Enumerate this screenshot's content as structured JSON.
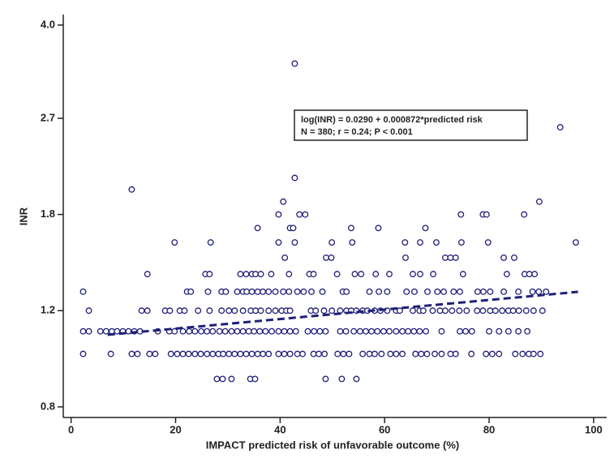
{
  "chart_data": {
    "type": "scatter",
    "x_label": "IMPACT predicted risk of unfavorable outcome (%)",
    "y_label": "INR",
    "annotation": [
      "log(INR) = 0.0290  +  0.000872*predicted risk",
      "N = 380; r = 0.24; P < 0.001"
    ],
    "color": "#1f1f7a",
    "log_y": true,
    "xlim": [
      -1.5,
      102.5
    ],
    "ylim": [
      0.765,
      4.18
    ],
    "xticks": [
      0,
      20,
      40,
      60,
      80,
      100
    ],
    "yticks": [
      {
        "value": 0.8,
        "label": "0.8"
      },
      {
        "value": 1.2,
        "label": "1.2"
      },
      {
        "value": 1.8,
        "label": "1.8"
      },
      {
        "value": 2.7,
        "label": "2.7"
      },
      {
        "value": 4.0,
        "label": "4.0"
      }
    ],
    "trend_line": {
      "x": [
        7,
        97
      ],
      "y": [
        1.084,
        1.299
      ]
    },
    "x": [
      2.3,
      7.6,
      11.6,
      12.7,
      15.0,
      16.1,
      19.1,
      20.3,
      21.4,
      22.5,
      23.7,
      24.8,
      26.0,
      27.1,
      28.2,
      29.1,
      30.2,
      31.3,
      32.4,
      33.5,
      34.6,
      35.7,
      36.7,
      37.8,
      39.7,
      40.8,
      41.9,
      43.3,
      44.3,
      46.4,
      47.4,
      48.5,
      51.0,
      52.1,
      53.2,
      55.8,
      57.1,
      58.1,
      59.4,
      61.1,
      62.2,
      63.4,
      65.9,
      67.0,
      68.1,
      69.6,
      70.9,
      72.6,
      73.6,
      76.6,
      79.4,
      80.6,
      81.9,
      85.0,
      86.4,
      87.6,
      88.5,
      89.8,
      2.3,
      3.4,
      5.6,
      6.7,
      7.8,
      8.8,
      9.9,
      11.0,
      12.1,
      13.2,
      16.6,
      18.8,
      19.8,
      21.4,
      22.6,
      23.7,
      24.9,
      26.0,
      27.1,
      28.4,
      29.5,
      30.7,
      31.8,
      32.9,
      34.0,
      35.0,
      36.1,
      37.2,
      38.4,
      39.7,
      40.8,
      41.9,
      43.0,
      45.3,
      46.5,
      47.6,
      48.7,
      51.5,
      52.6,
      54.1,
      55.3,
      56.4,
      57.5,
      58.6,
      59.8,
      60.9,
      62.2,
      63.4,
      64.5,
      65.6,
      66.7,
      67.9,
      70.9,
      74.4,
      75.5,
      76.7,
      80.0,
      81.9,
      83.7,
      85.6,
      87.3,
      3.4,
      13.5,
      14.6,
      18.0,
      18.9,
      20.8,
      21.7,
      24.3,
      26.5,
      28.8,
      30.2,
      31.3,
      32.9,
      34.4,
      35.3,
      36.3,
      37.8,
      39.1,
      40.3,
      41.2,
      41.9,
      45.9,
      46.8,
      48.4,
      49.9,
      51.5,
      52.7,
      53.6,
      54.6,
      55.8,
      56.7,
      58.1,
      59.2,
      60.5,
      62.2,
      62.9,
      65.4,
      66.7,
      67.4,
      69.2,
      70.6,
      71.6,
      72.9,
      74.3,
      75.7,
      77.7,
      78.8,
      80.2,
      81.2,
      82.5,
      83.7,
      84.6,
      85.7,
      87.1,
      88.5,
      90.2,
      2.3,
      22.2,
      22.9,
      26.2,
      28.8,
      29.6,
      31.8,
      32.9,
      33.6,
      34.6,
      35.7,
      36.7,
      37.8,
      39.1,
      40.6,
      41.7,
      43.3,
      44.5,
      46.0,
      48.1,
      52.0,
      52.7,
      57.1,
      58.9,
      60.5,
      64.2,
      65.7,
      68.2,
      70.1,
      71.3,
      73.2,
      74.4,
      77.8,
      78.9,
      80.2,
      82.8,
      85.6,
      88.3,
      89.5,
      90.9,
      14.6,
      25.7,
      26.5,
      32.4,
      33.5,
      34.6,
      35.3,
      36.3,
      38.3,
      41.7,
      45.6,
      46.4,
      50.9,
      54.3,
      55.5,
      58.3,
      60.9,
      65.4,
      66.8,
      69.3,
      75.0,
      83.4,
      86.8,
      87.7,
      88.7,
      40.9,
      48.8,
      49.8,
      64.0,
      71.6,
      72.6,
      73.6,
      82.8,
      84.8,
      19.8,
      26.7,
      39.7,
      42.8,
      49.9,
      53.8,
      63.9,
      66.8,
      69.9,
      74.7,
      79.8,
      96.6,
      35.7,
      41.9,
      42.5,
      53.6,
      58.8,
      67.8,
      39.7,
      43.7,
      44.8,
      74.6,
      78.8,
      79.5,
      86.7,
      40.6,
      89.6,
      11.6,
      42.8,
      93.6,
      42.8,
      27.9,
      29.0,
      30.7,
      34.3,
      35.2,
      48.7,
      51.8,
      54.6
    ],
    "values": [
      1.0,
      1.0,
      1.0,
      1.0,
      1.0,
      1.0,
      1.0,
      1.0,
      1.0,
      1.0,
      1.0,
      1.0,
      1.0,
      1.0,
      1.0,
      1.0,
      1.0,
      1.0,
      1.0,
      1.0,
      1.0,
      1.0,
      1.0,
      1.0,
      1.0,
      1.0,
      1.0,
      1.0,
      1.0,
      1.0,
      1.0,
      1.0,
      1.0,
      1.0,
      1.0,
      1.0,
      1.0,
      1.0,
      1.0,
      1.0,
      1.0,
      1.0,
      1.0,
      1.0,
      1.0,
      1.0,
      1.0,
      1.0,
      1.0,
      1.0,
      1.0,
      1.0,
      1.0,
      1.0,
      1.0,
      1.0,
      1.0,
      1.0,
      1.1,
      1.1,
      1.1,
      1.1,
      1.1,
      1.1,
      1.1,
      1.1,
      1.1,
      1.1,
      1.1,
      1.1,
      1.1,
      1.1,
      1.1,
      1.1,
      1.1,
      1.1,
      1.1,
      1.1,
      1.1,
      1.1,
      1.1,
      1.1,
      1.1,
      1.1,
      1.1,
      1.1,
      1.1,
      1.1,
      1.1,
      1.1,
      1.1,
      1.1,
      1.1,
      1.1,
      1.1,
      1.1,
      1.1,
      1.1,
      1.1,
      1.1,
      1.1,
      1.1,
      1.1,
      1.1,
      1.1,
      1.1,
      1.1,
      1.1,
      1.1,
      1.1,
      1.1,
      1.1,
      1.1,
      1.1,
      1.1,
      1.1,
      1.1,
      1.1,
      1.1,
      1.2,
      1.2,
      1.2,
      1.2,
      1.2,
      1.2,
      1.2,
      1.2,
      1.2,
      1.2,
      1.2,
      1.2,
      1.2,
      1.2,
      1.2,
      1.2,
      1.2,
      1.2,
      1.2,
      1.2,
      1.2,
      1.2,
      1.2,
      1.2,
      1.2,
      1.2,
      1.2,
      1.2,
      1.2,
      1.2,
      1.2,
      1.2,
      1.2,
      1.2,
      1.2,
      1.2,
      1.2,
      1.2,
      1.2,
      1.2,
      1.2,
      1.2,
      1.2,
      1.2,
      1.2,
      1.2,
      1.2,
      1.2,
      1.2,
      1.2,
      1.2,
      1.2,
      1.2,
      1.2,
      1.2,
      1.2,
      1.3,
      1.3,
      1.3,
      1.3,
      1.3,
      1.3,
      1.3,
      1.3,
      1.3,
      1.3,
      1.3,
      1.3,
      1.3,
      1.3,
      1.3,
      1.3,
      1.3,
      1.3,
      1.3,
      1.3,
      1.3,
      1.3,
      1.3,
      1.3,
      1.3,
      1.3,
      1.3,
      1.3,
      1.3,
      1.3,
      1.3,
      1.3,
      1.3,
      1.3,
      1.3,
      1.3,
      1.3,
      1.3,
      1.3,
      1.3,
      1.4,
      1.4,
      1.4,
      1.4,
      1.4,
      1.4,
      1.4,
      1.4,
      1.4,
      1.4,
      1.4,
      1.4,
      1.4,
      1.4,
      1.4,
      1.4,
      1.4,
      1.4,
      1.4,
      1.4,
      1.4,
      1.4,
      1.4,
      1.4,
      1.4,
      1.5,
      1.5,
      1.5,
      1.5,
      1.5,
      1.5,
      1.5,
      1.5,
      1.5,
      1.6,
      1.6,
      1.6,
      1.6,
      1.6,
      1.6,
      1.6,
      1.6,
      1.6,
      1.6,
      1.6,
      1.6,
      1.7,
      1.7,
      1.7,
      1.7,
      1.7,
      1.7,
      1.8,
      1.8,
      1.8,
      1.8,
      1.8,
      1.8,
      1.8,
      1.9,
      1.9,
      2.0,
      2.1,
      2.6,
      3.4,
      0.9,
      0.9,
      0.9,
      0.9,
      0.9,
      0.9,
      0.9,
      0.9
    ]
  }
}
